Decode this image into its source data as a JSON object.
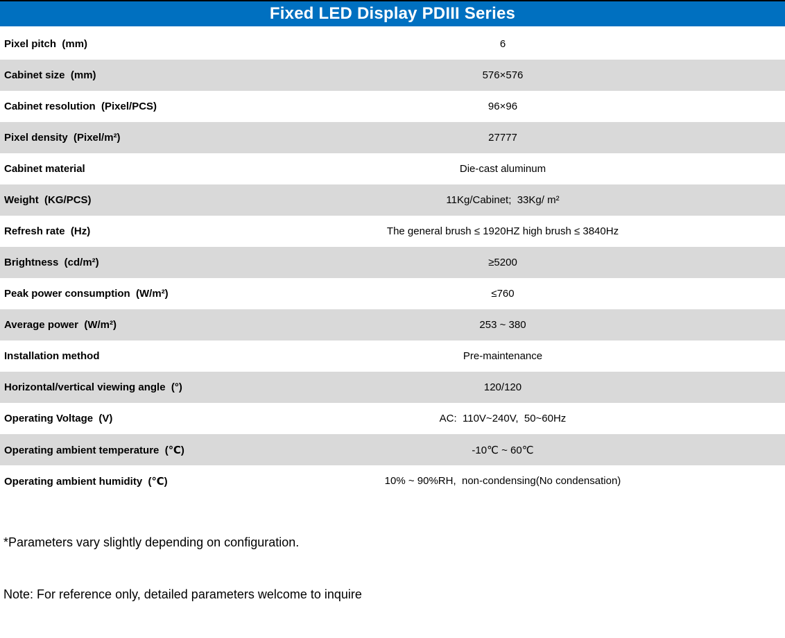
{
  "header": {
    "title": "Fixed LED Display PDIII Series"
  },
  "table": {
    "rows": [
      {
        "label": "Pixel pitch  (mm)",
        "value": "6"
      },
      {
        "label": "Cabinet size  (mm)",
        "value": "576×576"
      },
      {
        "label": "Cabinet resolution  (Pixel/PCS)",
        "value": "96×96"
      },
      {
        "label": "Pixel density  (Pixel/m²)",
        "value": "27777"
      },
      {
        "label": "Cabinet material",
        "value": "Die-cast aluminum"
      },
      {
        "label": "Weight  (KG/PCS)",
        "value": "11Kg/Cabinet;  33Kg/ m²"
      },
      {
        "label": "Refresh rate  (Hz)",
        "value": "The general brush ≤ 1920HZ high brush ≤ 3840Hz"
      },
      {
        "label": "Brightness  (cd/m²)",
        "value": "≥5200"
      },
      {
        "label": "Peak power consumption  (W/m²)",
        "value": "≤760"
      },
      {
        "label": "Average power  (W/m²)",
        "value": "253 ~ 380"
      },
      {
        "label": "Installation method",
        "value": "Pre-maintenance"
      },
      {
        "label": "Horizontal/vertical viewing angle  (°)",
        "value": "120/120"
      },
      {
        "label": "Operating Voltage  (V)",
        "value": "AC:  110V~240V,  50~60Hz"
      },
      {
        "label": "Operating ambient temperature  (℃)",
        "value": "-10℃ ~ 60℃"
      },
      {
        "label": "Operating ambient humidity  (℃)",
        "value": "10% ~ 90%RH,  non-condensing(No condensation)"
      }
    ]
  },
  "footnotes": [
    "*Parameters vary slightly depending on configuration.",
    "Note: For reference only, detailed parameters welcome to inquire"
  ],
  "colors": {
    "header_bg": "#0070C0",
    "row_alt_bg": "#D9D9D9",
    "top_line": "#000000",
    "header_text": "#FFFFFF",
    "body_text": "#000000"
  }
}
